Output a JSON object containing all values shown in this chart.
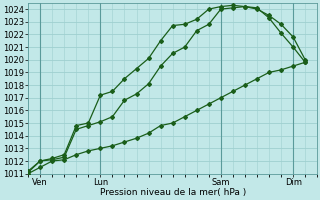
{
  "title": "",
  "xlabel": "Pression niveau de la mer( hPa )",
  "ylim": [
    1011,
    1024.5
  ],
  "yticks": [
    1011,
    1012,
    1013,
    1014,
    1015,
    1016,
    1017,
    1018,
    1019,
    1020,
    1021,
    1022,
    1023,
    1024
  ],
  "xlim": [
    0,
    12
  ],
  "xtick_positions": [
    0.5,
    3,
    8,
    11
  ],
  "xtick_labels": [
    "Ven",
    "Lun",
    "Sam",
    "Dim"
  ],
  "vline_positions": [
    0.5,
    3,
    8,
    11
  ],
  "bg_color": "#c2e8e8",
  "grid_color": "#9fd0d0",
  "line_color": "#1a5e1a",
  "line_width": 0.9,
  "marker": "D",
  "marker_size": 2.0,
  "x": [
    0,
    0.5,
    1,
    1.5,
    2,
    2.5,
    3,
    3.5,
    4,
    4.5,
    5,
    5.5,
    6,
    6.5,
    7,
    7.5,
    8,
    8.5,
    9,
    9.5,
    10,
    10.5,
    11,
    11.5
  ],
  "line_upper": [
    1011.2,
    1012.0,
    1012.2,
    1012.5,
    1014.8,
    1015.0,
    1017.2,
    1017.5,
    1018.5,
    1019.3,
    1020.1,
    1021.5,
    1022.7,
    1022.8,
    1023.2,
    1024.0,
    1024.2,
    1024.3,
    1024.2,
    1024.1,
    1023.3,
    1022.1,
    1021.0,
    1019.8
  ],
  "line_mid": [
    1011.1,
    1012.0,
    1012.1,
    1012.3,
    1014.5,
    1014.8,
    1015.1,
    1015.5,
    1016.8,
    1017.3,
    1018.1,
    1019.5,
    1020.5,
    1021.0,
    1022.3,
    1022.8,
    1024.0,
    1024.1,
    1024.2,
    1024.0,
    1023.5,
    1022.8,
    1021.8,
    1020.0
  ],
  "line_lower": [
    1011.0,
    1011.5,
    1012.0,
    1012.1,
    1012.5,
    1012.8,
    1013.0,
    1013.2,
    1013.5,
    1013.8,
    1014.2,
    1014.8,
    1015.0,
    1015.5,
    1016.0,
    1016.5,
    1017.0,
    1017.5,
    1018.0,
    1018.5,
    1019.0,
    1019.2,
    1019.5,
    1019.8
  ]
}
